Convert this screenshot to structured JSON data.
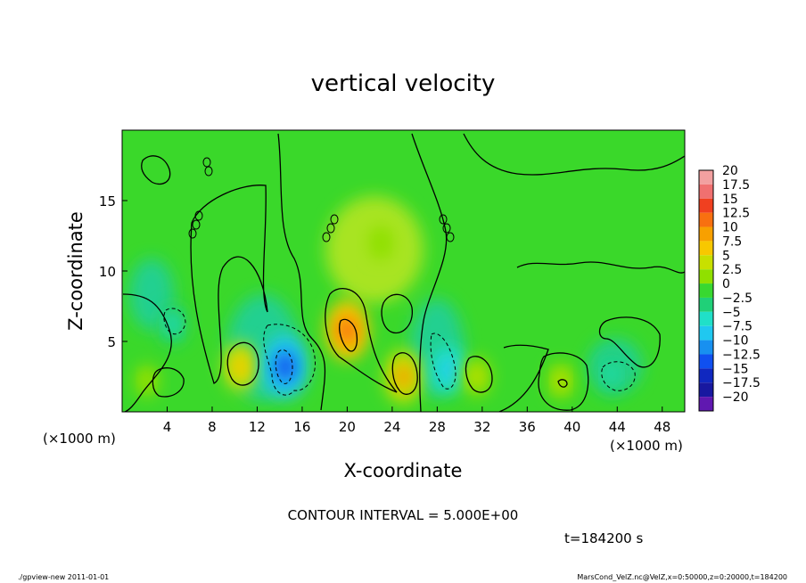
{
  "chart_data": {
    "type": "heatmap",
    "title": "vertical velocity",
    "xlabel": "X-coordinate",
    "ylabel": "Z-coordinate",
    "x_unit_left": "(×1000 m)",
    "x_unit_right": "(×1000 m)",
    "xlim": [
      0,
      50
    ],
    "ylim": [
      0,
      20
    ],
    "x_ticks": [
      4,
      8,
      12,
      16,
      20,
      24,
      28,
      32,
      36,
      40,
      44,
      48
    ],
    "y_ticks": [
      5,
      10,
      15
    ],
    "colorbar": {
      "labels": [
        "20",
        "17.5",
        "15",
        "12.5",
        "10",
        "7.5",
        "5",
        "2.5",
        "0",
        "−2.5",
        "−5",
        "−7.5",
        "−10",
        "−12.5",
        "−15",
        "−17.5",
        "−20"
      ],
      "colors": [
        "#f2a0a0",
        "#f07070",
        "#f04020",
        "#f87010",
        "#f8a000",
        "#f8c800",
        "#c8e000",
        "#90e000",
        "#38d830",
        "#20d078",
        "#20e0c8",
        "#20c8f0",
        "#1890f0",
        "#1050f0",
        "#1028c0",
        "#1818a0",
        "#6018b0"
      ]
    },
    "grid": false,
    "cells": [
      {
        "x": 2.2,
        "z": 2.2,
        "w": 2.4
      },
      {
        "x": 4.5,
        "z": 6.2,
        "w": -5
      },
      {
        "x": 10.5,
        "z": 3.2,
        "w": 7.5
      },
      {
        "x": 14.5,
        "z": 3.2,
        "w": -12
      },
      {
        "x": 20.0,
        "z": 5.8,
        "w": 11
      },
      {
        "x": 25.0,
        "z": 2.5,
        "w": 9
      },
      {
        "x": 29.0,
        "z": 3.0,
        "w": -7
      },
      {
        "x": 31.5,
        "z": 2.5,
        "w": 5
      },
      {
        "x": 39.0,
        "z": 2.2,
        "w": 4
      },
      {
        "x": 43.5,
        "z": 2.7,
        "w": -5
      },
      {
        "x": 23.0,
        "z": 12.0,
        "w": 3
      }
    ]
  },
  "annotations": {
    "contour_interval": "CONTOUR INTERVAL = 5.000E+00",
    "time": "t=184200 s",
    "footer_left": "./gpview-new  2011-01-01",
    "footer_right": "MarsCond_VelZ.nc@VelZ,x=0:50000,z=0:20000,t=184200"
  }
}
